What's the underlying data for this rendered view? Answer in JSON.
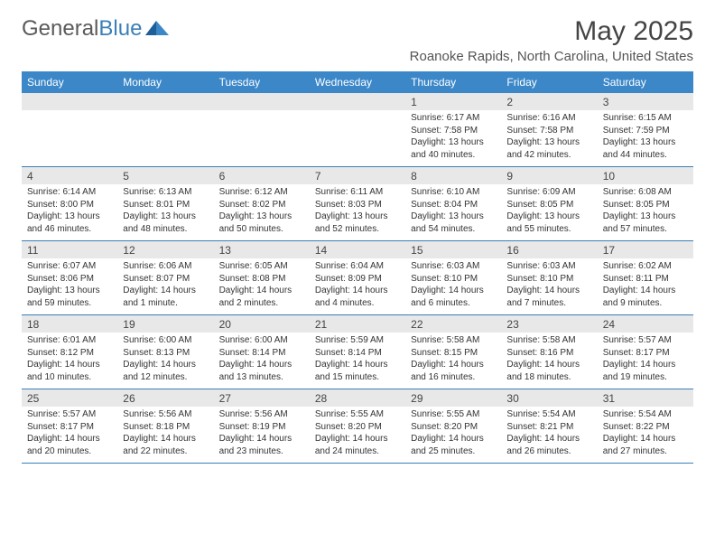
{
  "logo": {
    "part1": "General",
    "part2": "Blue"
  },
  "title": "May 2025",
  "location": "Roanoke Rapids, North Carolina, United States",
  "colors": {
    "header_bg": "#3b87c8",
    "header_text": "#ffffff",
    "daynum_bg": "#e8e8e8",
    "border": "#3b7fb8",
    "text": "#333333",
    "logo_gray": "#5a5a5a",
    "logo_blue": "#3b7fb8"
  },
  "weekdays": [
    "Sunday",
    "Monday",
    "Tuesday",
    "Wednesday",
    "Thursday",
    "Friday",
    "Saturday"
  ],
  "weeks": [
    [
      {
        "n": "",
        "t": ""
      },
      {
        "n": "",
        "t": ""
      },
      {
        "n": "",
        "t": ""
      },
      {
        "n": "",
        "t": ""
      },
      {
        "n": "1",
        "t": "Sunrise: 6:17 AM\nSunset: 7:58 PM\nDaylight: 13 hours and 40 minutes."
      },
      {
        "n": "2",
        "t": "Sunrise: 6:16 AM\nSunset: 7:58 PM\nDaylight: 13 hours and 42 minutes."
      },
      {
        "n": "3",
        "t": "Sunrise: 6:15 AM\nSunset: 7:59 PM\nDaylight: 13 hours and 44 minutes."
      }
    ],
    [
      {
        "n": "4",
        "t": "Sunrise: 6:14 AM\nSunset: 8:00 PM\nDaylight: 13 hours and 46 minutes."
      },
      {
        "n": "5",
        "t": "Sunrise: 6:13 AM\nSunset: 8:01 PM\nDaylight: 13 hours and 48 minutes."
      },
      {
        "n": "6",
        "t": "Sunrise: 6:12 AM\nSunset: 8:02 PM\nDaylight: 13 hours and 50 minutes."
      },
      {
        "n": "7",
        "t": "Sunrise: 6:11 AM\nSunset: 8:03 PM\nDaylight: 13 hours and 52 minutes."
      },
      {
        "n": "8",
        "t": "Sunrise: 6:10 AM\nSunset: 8:04 PM\nDaylight: 13 hours and 54 minutes."
      },
      {
        "n": "9",
        "t": "Sunrise: 6:09 AM\nSunset: 8:05 PM\nDaylight: 13 hours and 55 minutes."
      },
      {
        "n": "10",
        "t": "Sunrise: 6:08 AM\nSunset: 8:05 PM\nDaylight: 13 hours and 57 minutes."
      }
    ],
    [
      {
        "n": "11",
        "t": "Sunrise: 6:07 AM\nSunset: 8:06 PM\nDaylight: 13 hours and 59 minutes."
      },
      {
        "n": "12",
        "t": "Sunrise: 6:06 AM\nSunset: 8:07 PM\nDaylight: 14 hours and 1 minute."
      },
      {
        "n": "13",
        "t": "Sunrise: 6:05 AM\nSunset: 8:08 PM\nDaylight: 14 hours and 2 minutes."
      },
      {
        "n": "14",
        "t": "Sunrise: 6:04 AM\nSunset: 8:09 PM\nDaylight: 14 hours and 4 minutes."
      },
      {
        "n": "15",
        "t": "Sunrise: 6:03 AM\nSunset: 8:10 PM\nDaylight: 14 hours and 6 minutes."
      },
      {
        "n": "16",
        "t": "Sunrise: 6:03 AM\nSunset: 8:10 PM\nDaylight: 14 hours and 7 minutes."
      },
      {
        "n": "17",
        "t": "Sunrise: 6:02 AM\nSunset: 8:11 PM\nDaylight: 14 hours and 9 minutes."
      }
    ],
    [
      {
        "n": "18",
        "t": "Sunrise: 6:01 AM\nSunset: 8:12 PM\nDaylight: 14 hours and 10 minutes."
      },
      {
        "n": "19",
        "t": "Sunrise: 6:00 AM\nSunset: 8:13 PM\nDaylight: 14 hours and 12 minutes."
      },
      {
        "n": "20",
        "t": "Sunrise: 6:00 AM\nSunset: 8:14 PM\nDaylight: 14 hours and 13 minutes."
      },
      {
        "n": "21",
        "t": "Sunrise: 5:59 AM\nSunset: 8:14 PM\nDaylight: 14 hours and 15 minutes."
      },
      {
        "n": "22",
        "t": "Sunrise: 5:58 AM\nSunset: 8:15 PM\nDaylight: 14 hours and 16 minutes."
      },
      {
        "n": "23",
        "t": "Sunrise: 5:58 AM\nSunset: 8:16 PM\nDaylight: 14 hours and 18 minutes."
      },
      {
        "n": "24",
        "t": "Sunrise: 5:57 AM\nSunset: 8:17 PM\nDaylight: 14 hours and 19 minutes."
      }
    ],
    [
      {
        "n": "25",
        "t": "Sunrise: 5:57 AM\nSunset: 8:17 PM\nDaylight: 14 hours and 20 minutes."
      },
      {
        "n": "26",
        "t": "Sunrise: 5:56 AM\nSunset: 8:18 PM\nDaylight: 14 hours and 22 minutes."
      },
      {
        "n": "27",
        "t": "Sunrise: 5:56 AM\nSunset: 8:19 PM\nDaylight: 14 hours and 23 minutes."
      },
      {
        "n": "28",
        "t": "Sunrise: 5:55 AM\nSunset: 8:20 PM\nDaylight: 14 hours and 24 minutes."
      },
      {
        "n": "29",
        "t": "Sunrise: 5:55 AM\nSunset: 8:20 PM\nDaylight: 14 hours and 25 minutes."
      },
      {
        "n": "30",
        "t": "Sunrise: 5:54 AM\nSunset: 8:21 PM\nDaylight: 14 hours and 26 minutes."
      },
      {
        "n": "31",
        "t": "Sunrise: 5:54 AM\nSunset: 8:22 PM\nDaylight: 14 hours and 27 minutes."
      }
    ]
  ]
}
